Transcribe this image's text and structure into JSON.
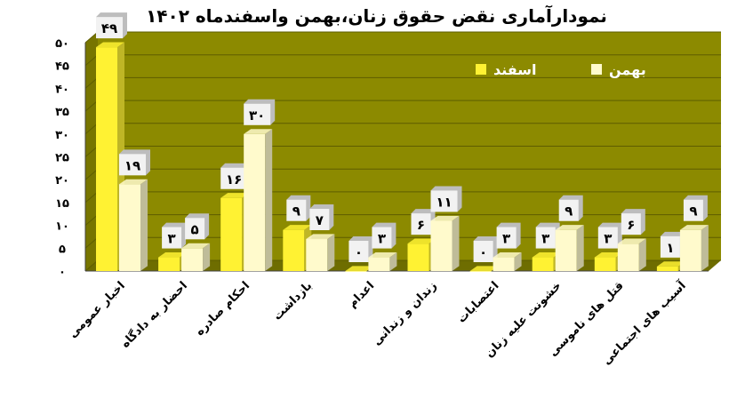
{
  "chart_data": {
    "type": "bar",
    "title": "نمودارآماری نقض حقوق زنان،بهمن واسفندماه ۱۴۰۲",
    "categories": [
      "اخبار عمومی",
      "احضار به دادگاه",
      "احکام صادره",
      "بازداشت",
      "اعدام",
      "زندان و زندانی",
      "اعتصابات",
      "خشونت علیه زنان",
      "قتل های ناموسی",
      "آسیب های اجتماعی"
    ],
    "series": [
      {
        "name": "اسفند",
        "values": [
          49,
          3,
          16,
          9,
          0,
          6,
          0,
          3,
          3,
          1
        ],
        "labels": [
          "۴۹",
          "۳",
          "۱۶",
          "۹",
          "۰",
          "۶",
          "۰",
          "۳",
          "۳",
          "۱"
        ]
      },
      {
        "name": "بهمن",
        "values": [
          19,
          5,
          30,
          7,
          3,
          11,
          3,
          9,
          6,
          9
        ],
        "labels": [
          "۱۹",
          "۵",
          "۳۰",
          "۷",
          "۳",
          "۱۱",
          "۳",
          "۹",
          "۶",
          "۹"
        ]
      }
    ],
    "ylim": [
      0,
      50
    ],
    "yticks": [
      0,
      5,
      10,
      15,
      20,
      25,
      30,
      35,
      40,
      45,
      50
    ],
    "ytick_labels": [
      "۰",
      "۵",
      "۱۰",
      "۱۵",
      "۲۰",
      "۲۵",
      "۳۰",
      "۳۵",
      "۴۰",
      "۴۵",
      "۵۰"
    ],
    "grid": true,
    "legend": "top-right",
    "colors": {
      "background": "#8c8a00",
      "floor": "#6e6d00",
      "series1": "#fff233",
      "series2": "#fffacc",
      "label_box": "#f2f2f2"
    }
  }
}
